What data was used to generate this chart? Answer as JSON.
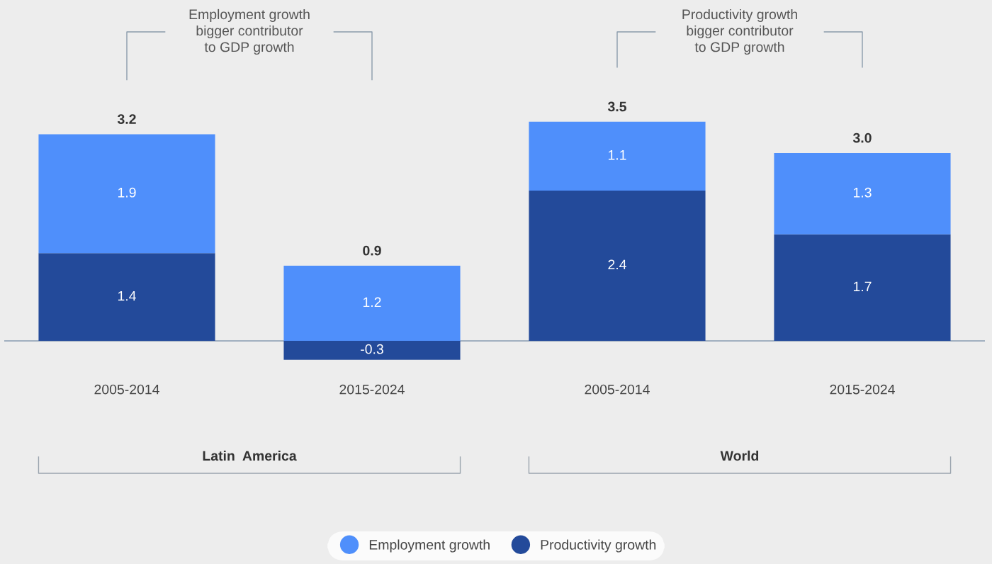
{
  "chart_data": {
    "type": "bar",
    "stacked": true,
    "categories": [
      "2005-2014",
      "2015-2024",
      "2005-2014",
      "2015-2024"
    ],
    "series": [
      {
        "name": "Productivity growth",
        "color": "#234a9a",
        "values": [
          1.4,
          -0.3,
          2.4,
          1.7
        ]
      },
      {
        "name": "Employment growth",
        "color": "#4f8ffb",
        "values": [
          1.9,
          1.2,
          1.1,
          1.3
        ]
      }
    ],
    "totals": [
      "3.2",
      "0.9",
      "3.5",
      "3.0"
    ],
    "data_labels": true,
    "legend": "bottom",
    "annotations": [
      "Employment growth\nbigger contributor\nto GDP growth",
      "Productivity growth\nbigger contributor\nto GDP growth",
      "Latin  America",
      "World"
    ]
  }
}
